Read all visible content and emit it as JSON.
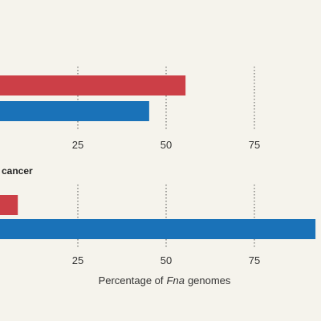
{
  "chart_data": [
    {
      "type": "bar",
      "orientation": "horizontal",
      "values": [
        55.5,
        45.2
      ],
      "colors": [
        "#cc3f47",
        "#1a72b8"
      ],
      "xlim": [
        0,
        100
      ],
      "xticks": [
        25,
        50,
        75
      ],
      "grid": true
    },
    {
      "type": "bar",
      "orientation": "horizontal",
      "title": "a cancer",
      "values": [
        8.0,
        92.3
      ],
      "colors": [
        "#cc3f47",
        "#1a72b8"
      ],
      "xlim": [
        0,
        100
      ],
      "xticks": [
        25,
        50,
        75
      ],
      "grid": true,
      "xlabel": [
        "Percentage of",
        "Fna",
        "genomes"
      ]
    }
  ]
}
